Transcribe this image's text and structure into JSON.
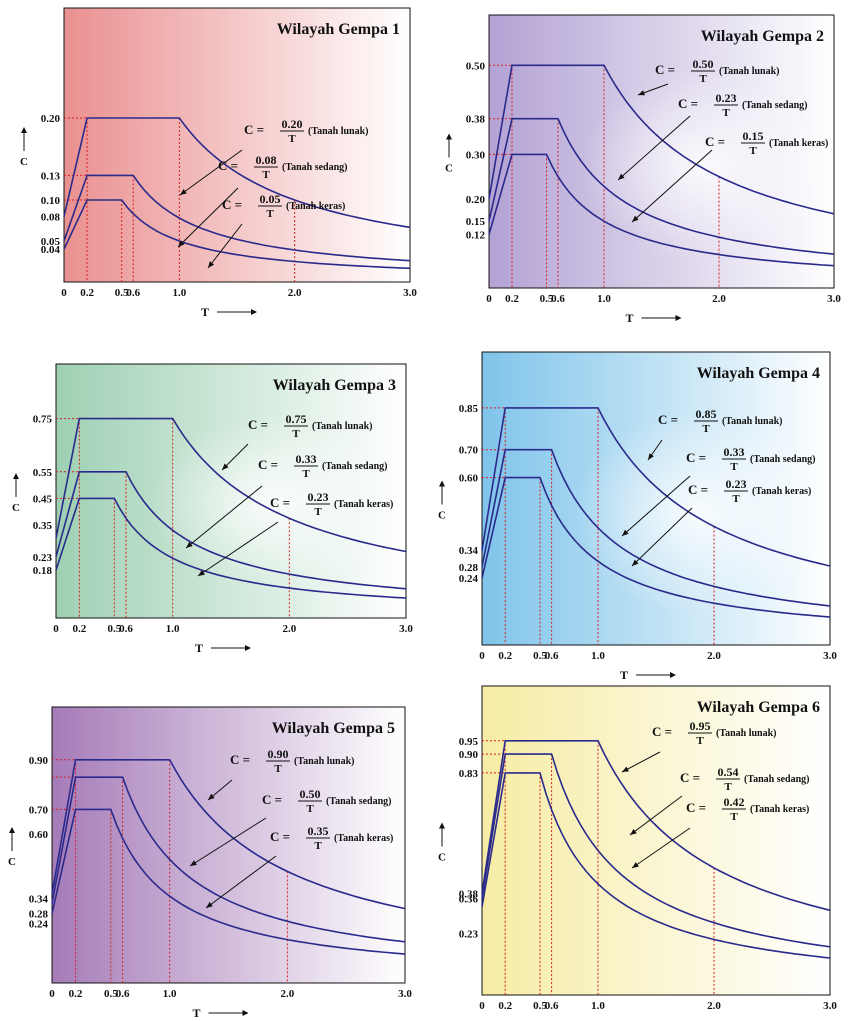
{
  "x_label": "T",
  "y_label": "C",
  "label_prefix": "C =",
  "charts": [
    {
      "title": "Wilayah Gempa 1",
      "colors": {
        "left": "#ea9090",
        "right": "#ffffff",
        "glow": null
      },
      "ylim": [
        0,
        0.3
      ],
      "yticks": [
        0.2,
        0.13,
        0.1,
        0.08,
        0.05,
        0.04
      ],
      "ytick_labels": [
        "0.20",
        "0.13",
        "0.10",
        "0.08",
        "0.05",
        "0.04"
      ],
      "xticks": [
        0,
        0.2,
        0.5,
        0.6,
        1.0,
        2.0,
        3.0
      ],
      "xtick_labels": [
        "0",
        "0.2",
        "0.5",
        "0.6",
        "1.0",
        "2.0",
        "3.0"
      ],
      "series": [
        {
          "name": "Tanah lunak",
          "start": 0.08,
          "plateau": 0.2,
          "t0": 0.2,
          "tc": 1.0,
          "num": "0.20",
          "den": "T",
          "label_note": "(Tanah lunak)"
        },
        {
          "name": "Tanah sedang",
          "start": 0.05,
          "plateau": 0.13,
          "t0": 0.2,
          "tc": 0.6,
          "num": "0.08",
          "den": "T",
          "label_note": "(Tanah sedang)"
        },
        {
          "name": "Tanah keras",
          "start": 0.04,
          "plateau": 0.1,
          "t0": 0.2,
          "tc": 0.5,
          "num": "0.05",
          "den": "T",
          "label_note": "(Tanah keras)"
        }
      ]
    },
    {
      "title": "Wilayah Gempa 2",
      "colors": {
        "left": "#b3a2d4",
        "right": "#ffffff",
        "glow": "#ffffff"
      },
      "ylim": [
        0,
        0.55
      ],
      "yticks": [
        0.5,
        0.38,
        0.3,
        0.2,
        0.15,
        0.12
      ],
      "ytick_labels": [
        "0.50",
        "0.38",
        "0.30",
        "0.20",
        "0.15",
        "0.12"
      ],
      "xticks": [
        0,
        0.2,
        0.5,
        0.6,
        1.0,
        2.0,
        3.0
      ],
      "xtick_labels": [
        "0",
        "0.2",
        "0.5",
        "0.6",
        "1.0",
        "2.0",
        "3.0"
      ],
      "series": [
        {
          "name": "Tanah lunak",
          "start": 0.2,
          "plateau": 0.5,
          "t0": 0.2,
          "tc": 1.0,
          "num": "0.50",
          "den": "T",
          "label_note": "(Tanah lunak)"
        },
        {
          "name": "Tanah sedang",
          "start": 0.15,
          "plateau": 0.38,
          "t0": 0.2,
          "tc": 0.6,
          "num": "0.23",
          "den": "T",
          "label_note": "(Tanah sedang)"
        },
        {
          "name": "Tanah keras",
          "start": 0.12,
          "plateau": 0.3,
          "t0": 0.2,
          "tc": 0.5,
          "num": "0.15",
          "den": "T",
          "label_note": "(Tanah keras)"
        }
      ]
    },
    {
      "title": "Wilayah Gempa 3",
      "colors": {
        "left": "#9ed0b3",
        "right": "#ffffff",
        "glow": "#ffffff"
      },
      "ylim": [
        0,
        0.85
      ],
      "yticks": [
        0.75,
        0.55,
        0.45,
        0.35,
        0.23,
        0.18
      ],
      "ytick_labels": [
        "0.75",
        "0.55",
        "0.45",
        "0.35",
        "0.23",
        "0.18"
      ],
      "xticks": [
        0,
        0.2,
        0.5,
        0.6,
        1.0,
        2.0,
        3.0
      ],
      "xtick_labels": [
        "0",
        "0.2",
        "0.5",
        "0.6",
        "1.0",
        "2.0",
        "3.0"
      ],
      "series": [
        {
          "name": "Tanah lunak",
          "start": 0.3,
          "plateau": 0.75,
          "t0": 0.2,
          "tc": 1.0,
          "num": "0.75",
          "den": "T",
          "label_note": "(Tanah lunak)"
        },
        {
          "name": "Tanah sedang",
          "start": 0.23,
          "plateau": 0.55,
          "t0": 0.2,
          "tc": 0.6,
          "num": "0.33",
          "den": "T",
          "label_note": "(Tanah sedang)"
        },
        {
          "name": "Tanah keras",
          "start": 0.18,
          "plateau": 0.45,
          "t0": 0.2,
          "tc": 0.5,
          "num": "0.23",
          "den": "T",
          "label_note": "(Tanah keras)"
        }
      ]
    },
    {
      "title": "Wilayah Gempa 4",
      "colors": {
        "left": "#7fc4ea",
        "right": "#ffffff",
        "glow": "#ffffff"
      },
      "ylim": [
        0,
        0.95
      ],
      "yticks": [
        0.85,
        0.7,
        0.6,
        0.34,
        0.28,
        0.24
      ],
      "ytick_labels": [
        "0.85",
        "0.70",
        "0.60",
        "0.34",
        "0.28",
        "0.24"
      ],
      "xticks": [
        0,
        0.2,
        0.5,
        0.6,
        1.0,
        2.0,
        3.0
      ],
      "xtick_labels": [
        "0",
        "0.2",
        "0.5",
        "0.6",
        "1.0",
        "2.0",
        "3.0"
      ],
      "series": [
        {
          "name": "Tanah lunak",
          "start": 0.34,
          "plateau": 0.85,
          "t0": 0.2,
          "tc": 1.0,
          "num": "0.85",
          "den": "T",
          "label_note": "(Tanah lunak)"
        },
        {
          "name": "Tanah sedang",
          "start": 0.28,
          "plateau": 0.7,
          "t0": 0.2,
          "tc": 0.6,
          "num": "0.33",
          "den": "T",
          "label_note": "(Tanah sedang)"
        },
        {
          "name": "Tanah keras",
          "start": 0.24,
          "plateau": 0.6,
          "t0": 0.2,
          "tc": 0.5,
          "num": "0.23",
          "den": "T",
          "label_note": "(Tanah keras)"
        }
      ]
    },
    {
      "title": "Wilayah Gempa 5",
      "colors": {
        "left": "#a57bb8",
        "right": "#ffffff",
        "glow": null
      },
      "ylim": [
        0,
        1.0
      ],
      "yticks": [
        0.9,
        0.7,
        0.6,
        0.34,
        0.28,
        0.24
      ],
      "ytick_labels": [
        "0.90",
        "0.70",
        "0.60",
        "0.34",
        "0.28",
        "0.24"
      ],
      "xticks": [
        0,
        0.2,
        0.5,
        0.6,
        1.0,
        2.0,
        3.0
      ],
      "xtick_labels": [
        "0",
        "0.2",
        "0.5",
        "0.6",
        "1.0",
        "2.0",
        "3.0"
      ],
      "series": [
        {
          "name": "Tanah lunak",
          "start": 0.36,
          "plateau": 0.9,
          "t0": 0.2,
          "tc": 1.0,
          "num": "0.90",
          "den": "T",
          "label_note": "(Tanah lunak)"
        },
        {
          "name": "Tanah sedang",
          "start": 0.32,
          "plateau": 0.83,
          "t0": 0.2,
          "tc": 0.6,
          "num": "0.50",
          "den": "T",
          "label_note": "(Tanah sedang)"
        },
        {
          "name": "Tanah keras",
          "start": 0.28,
          "plateau": 0.7,
          "t0": 0.2,
          "tc": 0.5,
          "num": "0.35",
          "den": "T",
          "label_note": "(Tanah keras)"
        }
      ]
    },
    {
      "title": "Wilayah Gempa 6",
      "colors": {
        "left": "#f6eca4",
        "right": "#ffffff",
        "glow": null
      },
      "ylim": [
        0,
        1.05
      ],
      "yticks": [
        0.95,
        0.9,
        0.83,
        0.38,
        0.36,
        0.23
      ],
      "ytick_labels": [
        "0.95",
        "0.90",
        "0.83",
        "0.38",
        "0.36",
        "0.23"
      ],
      "xticks": [
        0,
        0.2,
        0.5,
        0.6,
        1.0,
        2.0,
        3.0
      ],
      "xtick_labels": [
        "0",
        "0.2",
        "0.5",
        "0.6",
        "1.0",
        "2.0",
        "3.0"
      ],
      "series": [
        {
          "name": "Tanah lunak",
          "start": 0.38,
          "plateau": 0.95,
          "t0": 0.2,
          "tc": 1.0,
          "num": "0.95",
          "den": "T",
          "label_note": "(Tanah lunak)"
        },
        {
          "name": "Tanah sedang",
          "start": 0.36,
          "plateau": 0.9,
          "t0": 0.2,
          "tc": 0.6,
          "num": "0.54",
          "den": "T",
          "label_note": "(Tanah sedang)"
        },
        {
          "name": "Tanah keras",
          "start": 0.33,
          "plateau": 0.83,
          "t0": 0.2,
          "tc": 0.5,
          "num": "0.42",
          "den": "T",
          "label_note": "(Tanah keras)"
        }
      ]
    }
  ],
  "chart_data": [
    {
      "type": "line",
      "title": "Wilayah Gempa 1",
      "xlabel": "T",
      "ylabel": "C",
      "xlim": [
        0,
        3.0
      ],
      "ylim": [
        0,
        0.3
      ],
      "series": [
        {
          "name": "Tanah lunak",
          "x": [
            0,
            0.2,
            1.0,
            1.5,
            2.0,
            2.5,
            3.0
          ],
          "y": [
            0.08,
            0.2,
            0.2,
            0.133,
            0.1,
            0.08,
            0.067
          ]
        },
        {
          "name": "Tanah sedang",
          "x": [
            0,
            0.2,
            0.6,
            1.0,
            1.5,
            2.0,
            2.5,
            3.0
          ],
          "y": [
            0.05,
            0.13,
            0.13,
            0.08,
            0.053,
            0.04,
            0.032,
            0.027
          ]
        },
        {
          "name": "Tanah keras",
          "x": [
            0,
            0.2,
            0.5,
            1.0,
            1.5,
            2.0,
            2.5,
            3.0
          ],
          "y": [
            0.04,
            0.1,
            0.1,
            0.05,
            0.033,
            0.025,
            0.02,
            0.017
          ]
        }
      ]
    },
    {
      "type": "line",
      "title": "Wilayah Gempa 2",
      "xlabel": "T",
      "ylabel": "C",
      "xlim": [
        0,
        3.0
      ],
      "ylim": [
        0,
        0.55
      ],
      "series": [
        {
          "name": "Tanah lunak",
          "x": [
            0,
            0.2,
            1.0,
            1.5,
            2.0,
            2.5,
            3.0
          ],
          "y": [
            0.2,
            0.5,
            0.5,
            0.333,
            0.25,
            0.2,
            0.167
          ]
        },
        {
          "name": "Tanah sedang",
          "x": [
            0,
            0.2,
            0.6,
            1.0,
            1.5,
            2.0,
            2.5,
            3.0
          ],
          "y": [
            0.15,
            0.38,
            0.38,
            0.23,
            0.153,
            0.115,
            0.092,
            0.077
          ]
        },
        {
          "name": "Tanah keras",
          "x": [
            0,
            0.2,
            0.5,
            1.0,
            1.5,
            2.0,
            2.5,
            3.0
          ],
          "y": [
            0.12,
            0.3,
            0.3,
            0.15,
            0.1,
            0.075,
            0.06,
            0.05
          ]
        }
      ]
    },
    {
      "type": "line",
      "title": "Wilayah Gempa 3",
      "xlabel": "T",
      "ylabel": "C",
      "xlim": [
        0,
        3.0
      ],
      "ylim": [
        0,
        0.85
      ],
      "series": [
        {
          "name": "Tanah lunak",
          "x": [
            0,
            0.2,
            1.0,
            1.5,
            2.0,
            2.5,
            3.0
          ],
          "y": [
            0.3,
            0.75,
            0.75,
            0.5,
            0.375,
            0.3,
            0.25
          ]
        },
        {
          "name": "Tanah sedang",
          "x": [
            0,
            0.2,
            0.6,
            1.0,
            1.5,
            2.0,
            2.5,
            3.0
          ],
          "y": [
            0.23,
            0.55,
            0.55,
            0.33,
            0.22,
            0.165,
            0.132,
            0.11
          ]
        },
        {
          "name": "Tanah keras",
          "x": [
            0,
            0.2,
            0.5,
            1.0,
            1.5,
            2.0,
            2.5,
            3.0
          ],
          "y": [
            0.18,
            0.45,
            0.45,
            0.23,
            0.153,
            0.115,
            0.092,
            0.077
          ]
        }
      ]
    },
    {
      "type": "line",
      "title": "Wilayah Gempa 4",
      "xlabel": "T",
      "ylabel": "C",
      "xlim": [
        0,
        3.0
      ],
      "ylim": [
        0,
        0.95
      ],
      "series": [
        {
          "name": "Tanah lunak",
          "x": [
            0,
            0.2,
            1.0,
            1.5,
            2.0,
            2.5,
            3.0
          ],
          "y": [
            0.34,
            0.85,
            0.85,
            0.567,
            0.425,
            0.34,
            0.283
          ]
        },
        {
          "name": "Tanah sedang",
          "x": [
            0,
            0.2,
            0.6,
            1.0,
            1.5,
            2.0,
            2.5,
            3.0
          ],
          "y": [
            0.28,
            0.7,
            0.7,
            0.33,
            0.22,
            0.165,
            0.132,
            0.11
          ]
        },
        {
          "name": "Tanah keras",
          "x": [
            0,
            0.2,
            0.5,
            1.0,
            1.5,
            2.0,
            2.5,
            3.0
          ],
          "y": [
            0.24,
            0.6,
            0.6,
            0.23,
            0.153,
            0.115,
            0.092,
            0.077
          ]
        }
      ]
    },
    {
      "type": "line",
      "title": "Wilayah Gempa 5",
      "xlabel": "T",
      "ylabel": "C",
      "xlim": [
        0,
        3.0
      ],
      "ylim": [
        0,
        1.0
      ],
      "series": [
        {
          "name": "Tanah lunak",
          "x": [
            0,
            0.2,
            1.0,
            1.5,
            2.0,
            2.5,
            3.0
          ],
          "y": [
            0.36,
            0.9,
            0.9,
            0.6,
            0.45,
            0.36,
            0.3
          ]
        },
        {
          "name": "Tanah sedang",
          "x": [
            0,
            0.2,
            0.6,
            1.0,
            1.5,
            2.0,
            2.5,
            3.0
          ],
          "y": [
            0.32,
            0.83,
            0.83,
            0.5,
            0.333,
            0.25,
            0.2,
            0.167
          ]
        },
        {
          "name": "Tanah keras",
          "x": [
            0,
            0.2,
            0.5,
            1.0,
            1.5,
            2.0,
            2.5,
            3.0
          ],
          "y": [
            0.28,
            0.7,
            0.7,
            0.35,
            0.233,
            0.175,
            0.14,
            0.117
          ]
        }
      ]
    },
    {
      "type": "line",
      "title": "Wilayah Gempa 6",
      "xlabel": "T",
      "ylabel": "C",
      "xlim": [
        0,
        3.0
      ],
      "ylim": [
        0,
        1.05
      ],
      "series": [
        {
          "name": "Tanah lunak",
          "x": [
            0,
            0.2,
            1.0,
            1.5,
            2.0,
            2.5,
            3.0
          ],
          "y": [
            0.38,
            0.95,
            0.95,
            0.633,
            0.475,
            0.38,
            0.317
          ]
        },
        {
          "name": "Tanah sedang",
          "x": [
            0,
            0.2,
            0.6,
            1.0,
            1.5,
            2.0,
            2.5,
            3.0
          ],
          "y": [
            0.36,
            0.9,
            0.9,
            0.54,
            0.36,
            0.27,
            0.216,
            0.18
          ]
        },
        {
          "name": "Tanah keras",
          "x": [
            0,
            0.2,
            0.5,
            1.0,
            1.5,
            2.0,
            2.5,
            3.0
          ],
          "y": [
            0.33,
            0.83,
            0.83,
            0.42,
            0.28,
            0.21,
            0.168,
            0.14
          ]
        }
      ]
    }
  ]
}
